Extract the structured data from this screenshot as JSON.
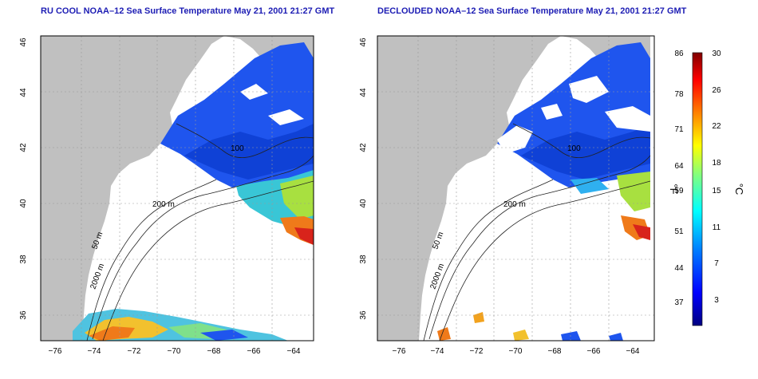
{
  "left_panel": {
    "title": "RU COOL NOAA–12 Sea Surface Temperature May 21, 2001 21:27 GMT"
  },
  "right_panel": {
    "title": "DECLOUDED NOAA–12 Sea Surface Temperature May 21, 2001 21:27 GMT"
  },
  "axes": {
    "lat_ticks": [
      "46",
      "44",
      "42",
      "40",
      "38",
      "36"
    ],
    "lon_ticks": [
      "−76",
      "−74",
      "−72",
      "−70",
      "−68",
      "−66",
      "−64"
    ]
  },
  "contour_labels": {
    "c200": "200 m",
    "c50": "50 m",
    "c2000": "2000 m",
    "c100": "100"
  },
  "colorbar": {
    "fahrenheit_ticks": [
      "86",
      "78",
      "71",
      "64",
      "59",
      "51",
      "44",
      "37"
    ],
    "celsius_ticks": [
      "30",
      "26",
      "22",
      "18",
      "15",
      "11",
      "7",
      "3"
    ],
    "fahrenheit_unit": "°F",
    "celsius_unit": "°C"
  },
  "colors": {
    "land": "#c0c0c0",
    "ocean": "#ffffff",
    "title": "#1d1db4",
    "sst_scale": [
      "#000080",
      "#0000ff",
      "#0080ff",
      "#00ffff",
      "#80ff80",
      "#ffff00",
      "#ff8000",
      "#ff0000",
      "#800000"
    ]
  }
}
